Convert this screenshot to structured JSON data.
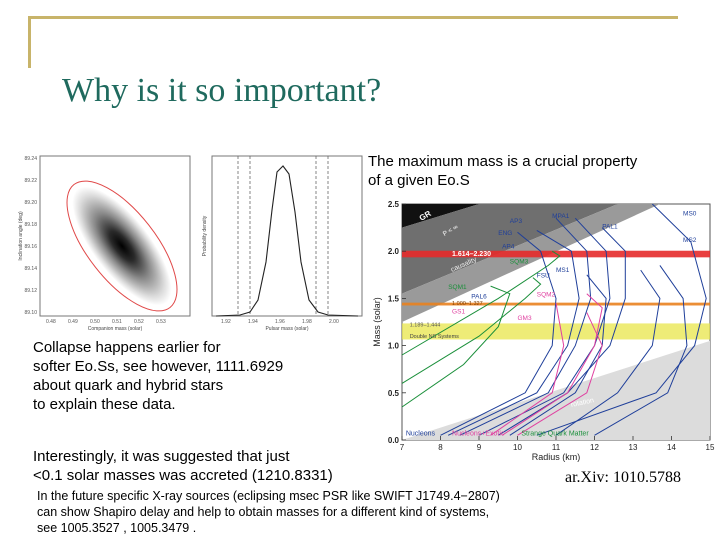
{
  "slide": {
    "title": "Why is it so important?",
    "intro": [
      "The maximum mass is a crucial property",
      "of a given Eo.S"
    ],
    "collapse": [
      "Collapse happens earlier for",
      "softer Eo.Ss, see however, 1111.6929",
      "about quark and hybrid stars",
      "to explain these data."
    ],
    "accreted": [
      "Interestingly, it was suggested that just",
      "<0.1 solar masses was accreted (1210.8331)"
    ],
    "arxiv": "ar.Xiv: 1010.5788",
    "future": [
      "In the future specific X-ray sources (eclipsing msec PSR like SWIFT J1749.4−2807)",
      "can show Shapiro delay and help to obtain masses for a different kind of systems,",
      "see 1005.3527 , 1005.3479 ."
    ]
  },
  "left_figure": {
    "ylabel_left": "Inclination angle (deg)",
    "xlabel_left": "Companion mass (solar)",
    "ylabel_right": "Probability density",
    "xlabel_right": "Pulsar mass (solar)"
  },
  "chart_data": {
    "type": "line",
    "ylabel": "Mass (solar)",
    "xlabel": "Radius (km)",
    "xlim": [
      7,
      15
    ],
    "ylim": [
      0,
      2.5
    ],
    "x_ticks": [
      "7",
      "8",
      "9",
      "10",
      "11",
      "12",
      "13",
      "14",
      "15"
    ],
    "y_ticks": [
      "0.0",
      "0.5",
      "1.0",
      "1.5",
      "2.0",
      "2.5"
    ],
    "band_labels": [
      "1.614–2.230",
      "1.000–1.327",
      "1.189–1.444"
    ],
    "region_labels": [
      "GR",
      "P < ∞",
      "causality",
      "rotation",
      "Double NS Systems"
    ],
    "eos_labels": [
      "MS0",
      "MPA1",
      "AP3",
      "ENG",
      "AP4",
      "PAL1",
      "MS2",
      "SQM3",
      "FSU",
      "MS1",
      "SQM1",
      "PAL6",
      "SQM2",
      "GS1",
      "GM3"
    ],
    "legend": [
      "Nucleons",
      "Nucleons+Exotic",
      "Strange Quark Matter"
    ],
    "legend_colors": [
      "#1f3f9a",
      "#e040a0",
      "#1a8f3a"
    ],
    "band_colors": [
      "#e52a2a",
      "#e9821f",
      "#e8e54a"
    ],
    "curves": [
      {
        "name": "MS0",
        "points": [
          [
            10.5,
            0.05
          ],
          [
            13.6,
            0.5
          ],
          [
            14.6,
            1.0
          ],
          [
            14.9,
            1.5
          ],
          [
            14.5,
            2.1
          ],
          [
            13.5,
            2.5
          ]
        ]
      },
      {
        "name": "MS2",
        "points": [
          [
            12.0,
            0.05
          ],
          [
            13.9,
            0.5
          ],
          [
            14.4,
            1.0
          ],
          [
            14.3,
            1.5
          ],
          [
            13.7,
            1.85
          ]
        ]
      },
      {
        "name": "MS1",
        "points": [
          [
            11.0,
            0.05
          ],
          [
            12.6,
            0.5
          ],
          [
            13.5,
            1.0
          ],
          [
            13.7,
            1.5
          ],
          [
            13.2,
            1.8
          ]
        ]
      },
      {
        "name": "PAL1",
        "points": [
          [
            9.5,
            0.05
          ],
          [
            11.3,
            0.5
          ],
          [
            12.4,
            1.0
          ],
          [
            12.8,
            1.5
          ],
          [
            12.8,
            2.0
          ],
          [
            12.2,
            2.25
          ]
        ]
      },
      {
        "name": "MPA1",
        "points": [
          [
            9.0,
            0.05
          ],
          [
            11.2,
            0.5
          ],
          [
            12.0,
            1.0
          ],
          [
            12.4,
            1.5
          ],
          [
            12.3,
            2.0
          ],
          [
            11.5,
            2.35
          ]
        ]
      },
      {
        "name": "AP3",
        "points": [
          [
            8.5,
            0.05
          ],
          [
            10.8,
            0.5
          ],
          [
            11.5,
            1.0
          ],
          [
            11.9,
            1.5
          ],
          [
            11.8,
            2.0
          ],
          [
            11.0,
            2.35
          ]
        ]
      },
      {
        "name": "ENG",
        "points": [
          [
            8.2,
            0.05
          ],
          [
            10.5,
            0.5
          ],
          [
            11.3,
            1.0
          ],
          [
            11.6,
            1.5
          ],
          [
            11.4,
            2.0
          ],
          [
            10.5,
            2.22
          ]
        ]
      },
      {
        "name": "AP4",
        "points": [
          [
            8.0,
            0.05
          ],
          [
            10.2,
            0.5
          ],
          [
            10.9,
            1.0
          ],
          [
            11.0,
            1.5
          ],
          [
            10.6,
            2.0
          ],
          [
            10.0,
            2.2
          ]
        ]
      },
      {
        "name": "FSU",
        "points": [
          [
            9.8,
            0.05
          ],
          [
            11.5,
            0.5
          ],
          [
            12.2,
            1.0
          ],
          [
            12.3,
            1.5
          ],
          [
            11.8,
            1.75
          ]
        ]
      },
      {
        "name": "PAL6",
        "points": [
          [
            9.3,
            0.05
          ],
          [
            10.9,
            0.5
          ],
          [
            11.2,
            1.0
          ],
          [
            11.0,
            1.45
          ]
        ]
      },
      {
        "name": "GS1",
        "points": [
          [
            10.0,
            0.05
          ],
          [
            11.8,
            0.5
          ],
          [
            12.2,
            1.0
          ],
          [
            11.8,
            1.35
          ]
        ]
      },
      {
        "name": "GM3",
        "points": [
          [
            9.6,
            0.05
          ],
          [
            11.3,
            0.5
          ],
          [
            12.0,
            1.0
          ],
          [
            12.2,
            1.4
          ],
          [
            11.8,
            1.55
          ]
        ]
      },
      {
        "name": "SQM1",
        "points": [
          [
            7.0,
            0.35
          ],
          [
            8.6,
            0.8
          ],
          [
            9.5,
            1.2
          ],
          [
            9.8,
            1.55
          ],
          [
            9.3,
            1.63
          ]
        ]
      },
      {
        "name": "SQM2",
        "points": [
          [
            7.0,
            0.6
          ],
          [
            9.0,
            1.1
          ],
          [
            10.2,
            1.5
          ],
          [
            10.6,
            1.65
          ],
          [
            10.4,
            1.72
          ]
        ]
      },
      {
        "name": "SQM3",
        "points": [
          [
            7.0,
            0.9
          ],
          [
            9.5,
            1.5
          ],
          [
            10.8,
            1.85
          ],
          [
            11.1,
            1.95
          ],
          [
            10.9,
            2.0
          ]
        ]
      }
    ]
  }
}
